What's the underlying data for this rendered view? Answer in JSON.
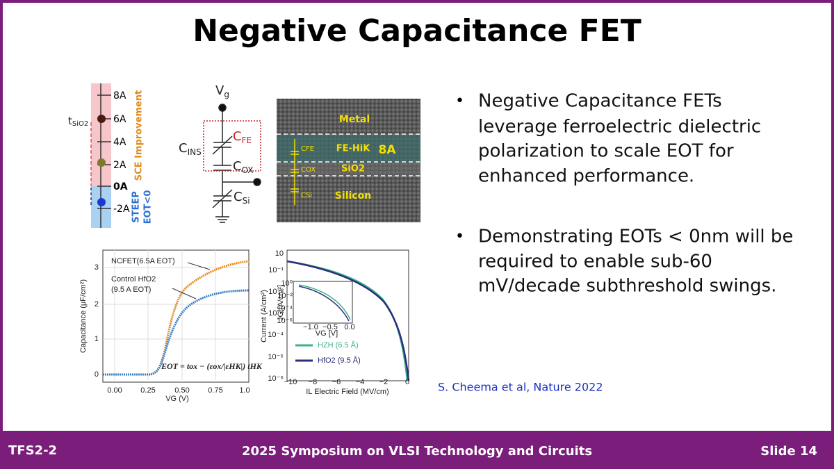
{
  "header": {
    "title": "Negative Capacitance FET"
  },
  "bullets": [
    {
      "lines": [
        "Negative Capacitance FETs",
        "leverage ferroelectric dielectric",
        "polarization to scale EOT for",
        "enhanced performance."
      ]
    },
    {
      "lines": [
        "Demonstrating EOTs < 0nm will be",
        "required to enable sub-60",
        "mV/decade subthreshold swings."
      ]
    }
  ],
  "citation": "S. Cheema et al, Nature 2022",
  "footer": {
    "left": "TFS2-2",
    "center": "2025 Symposium on VLSI Technology and Circuits",
    "right": "Slide 14"
  },
  "figures": {
    "eot_scale": {
      "t_label": {
        "main": "t",
        "sub": "SiO2"
      },
      "ticks": [
        "8A",
        "6A",
        "4A",
        "2A",
        "0A",
        "-2A"
      ],
      "improvement": "SCE Improvement",
      "steep": "STEEP",
      "eot_neg": "EOT<0"
    },
    "circuit": {
      "vg": {
        "main": "V",
        "sub": "g"
      },
      "cins": {
        "main": "C",
        "sub": "INS"
      },
      "cfe": {
        "main": "C",
        "sub": "FE"
      },
      "cox": {
        "main": "C",
        "sub": "OX"
      },
      "csi": {
        "main": "C",
        "sub": "Si"
      }
    },
    "tem": {
      "layers": [
        "Metal",
        "FE-HiK",
        "SiO2",
        "Silicon"
      ],
      "thickness": "8A",
      "caps": [
        "CFE",
        "COX",
        "CSi"
      ]
    },
    "capacitance_plot": {
      "xticks": [
        "0.00",
        "0.25",
        "0.50",
        "0.75",
        "1.0"
      ],
      "yticks": [
        "0",
        "1",
        "2",
        "3"
      ],
      "ylabel": "Capacitance (μF/cm²)",
      "xlabel": "VG (V)",
      "ncfet": "NCFET(6.5A EOT)",
      "control": [
        "Control HfO2",
        "(9.5 A EOT)"
      ],
      "equation": "EOT = tox − (εox/|εHK|) tHK"
    },
    "current_plot": {
      "yticks": [
        "10",
        "10⁻¹",
        "10⁻²",
        "10⁻³",
        "10⁻⁴",
        "10⁻⁵",
        "10⁻⁶"
      ],
      "xticks": [
        "−10",
        "−8",
        "−6",
        "−4",
        "−2",
        "0"
      ],
      "ylabel": "Current (A/cm²)",
      "xlabel": "IL Electric Field (MV/cm)",
      "legend": [
        "HZH (6.5 Å)",
        "HfO2 (9.5 Å)"
      ],
      "inset_yticks": [
        "10⁰",
        "10⁻²",
        "10⁻⁴",
        "10⁻⁶"
      ],
      "inset_xticks": [
        "−1.0",
        "−0.5",
        "0.0"
      ],
      "inset_xlabel": "VG [V]",
      "inset_ylabel": "JG [A/cm²]"
    }
  }
}
